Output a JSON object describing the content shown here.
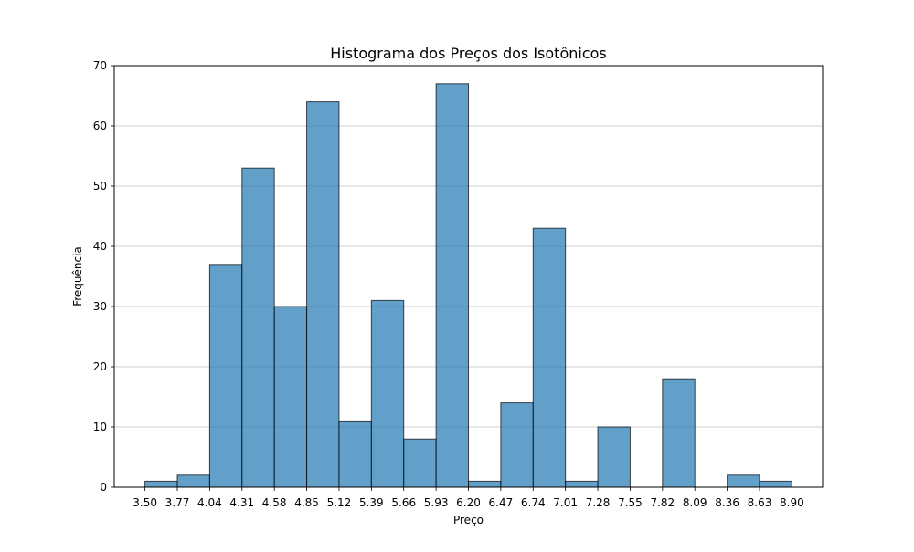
{
  "chart_data": {
    "type": "bar",
    "title": "Histograma dos Preços dos Isotônicos",
    "xlabel": "Preço",
    "ylabel": "Frequência",
    "bin_edges": [
      3.5,
      3.77,
      4.04,
      4.31,
      4.58,
      4.85,
      5.12,
      5.39,
      5.66,
      5.93,
      6.2,
      6.47,
      6.74,
      7.01,
      7.28,
      7.55,
      7.82,
      8.09,
      8.36,
      8.63,
      8.9
    ],
    "x_tick_labels": [
      "3.50",
      "3.77",
      "4.04",
      "4.31",
      "4.58",
      "4.85",
      "5.12",
      "5.39",
      "5.66",
      "5.93",
      "6.20",
      "6.47",
      "6.74",
      "7.01",
      "7.28",
      "7.55",
      "7.82",
      "8.09",
      "8.36",
      "8.63",
      "8.90"
    ],
    "values": [
      1,
      2,
      37,
      53,
      30,
      64,
      11,
      31,
      8,
      67,
      1,
      14,
      43,
      1,
      10,
      0,
      18,
      0,
      2,
      1
    ],
    "xlim": [
      3.2435,
      9.1565
    ],
    "ylim": [
      0,
      70
    ],
    "y_ticks": [
      0,
      10,
      20,
      30,
      40,
      50,
      60,
      70
    ],
    "y_tick_labels": [
      "0",
      "10",
      "20",
      "30",
      "40",
      "50",
      "60",
      "70"
    ],
    "grid": "y",
    "bar_color": "#1f77b4",
    "bar_edge_color": "#000000",
    "grid_color": "#b0b0b0"
  }
}
